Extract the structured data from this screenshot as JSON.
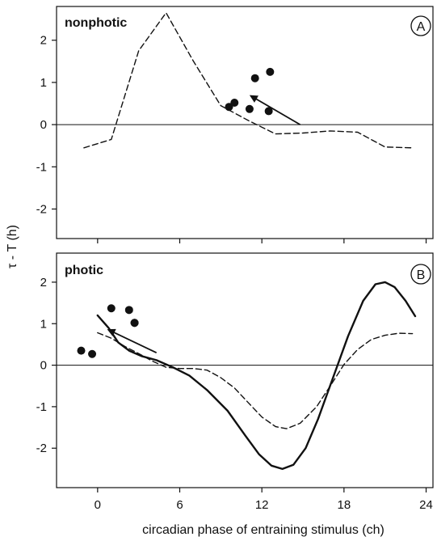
{
  "chart_data": {
    "type": "line",
    "ylabel": "τ - T (h)",
    "xlabel": "circadian phase of entraining stimulus (ch)",
    "xlim": [
      -3,
      24.5
    ],
    "x_ticks": [
      0,
      6,
      12,
      18,
      24
    ],
    "x_tick_labels": [
      "0",
      "6",
      "12",
      "18",
      "24"
    ],
    "y_ticks": [
      -2,
      -1,
      0,
      1,
      2
    ],
    "y_tick_labels": [
      "-2",
      "-1",
      "0",
      "1",
      "2"
    ],
    "panels": [
      {
        "id": "A",
        "title": "nonphotic",
        "badge": "A",
        "ylim": [
          -2.7,
          2.8
        ],
        "series": [
          {
            "style": "dashed",
            "x": [
              -1,
              1,
              3,
              5,
              7,
              9,
              11,
              13,
              15,
              17,
              19,
              21,
              23
            ],
            "y": [
              -0.55,
              -0.35,
              1.75,
              2.65,
              1.5,
              0.45,
              0.1,
              -0.22,
              -0.2,
              -0.15,
              -0.18,
              -0.53,
              -0.55
            ]
          }
        ],
        "points": {
          "x": [
            9.6,
            10.0,
            11.1,
            11.5,
            12.5,
            12.6
          ],
          "y": [
            0.42,
            0.52,
            0.37,
            1.1,
            0.32,
            1.25
          ]
        },
        "arrow": {
          "from": [
            14.8,
            0.0
          ],
          "to": [
            11.2,
            0.68
          ]
        }
      },
      {
        "id": "B",
        "title": "photic",
        "badge": "B",
        "ylim": [
          -2.95,
          2.7
        ],
        "series": [
          {
            "style": "solid",
            "x": [
              0,
              0.8,
              1.5,
              2.3,
              3.2,
              4.3,
              5.5,
              6.7,
              8,
              9.5,
              10.8,
              11.8,
              12.7,
              13.5,
              14.3,
              15.2,
              16.1,
              17.2,
              18.3,
              19.4,
              20.3,
              21.0,
              21.7,
              22.5,
              23.2
            ],
            "y": [
              1.2,
              0.9,
              0.55,
              0.35,
              0.22,
              0.12,
              -0.05,
              -0.25,
              -0.6,
              -1.1,
              -1.7,
              -2.15,
              -2.42,
              -2.5,
              -2.4,
              -2.0,
              -1.3,
              -0.3,
              0.7,
              1.55,
              1.95,
              2.0,
              1.88,
              1.55,
              1.18
            ]
          },
          {
            "style": "dashed",
            "x": [
              0,
              1,
              2,
              3,
              4,
              5,
              6,
              7,
              8,
              9,
              10,
              11,
              12,
              13,
              13.8,
              14.8,
              16,
              17,
              18,
              19,
              20,
              21,
              22,
              23
            ],
            "y": [
              0.78,
              0.65,
              0.45,
              0.28,
              0.1,
              -0.05,
              -0.08,
              -0.08,
              -0.12,
              -0.3,
              -0.55,
              -0.9,
              -1.25,
              -1.48,
              -1.53,
              -1.4,
              -1.0,
              -0.5,
              0.02,
              0.38,
              0.62,
              0.72,
              0.77,
              0.76
            ]
          }
        ],
        "points": {
          "x": [
            -1.2,
            -0.4,
            1.0,
            2.3,
            2.7,
            2.7
          ],
          "y": [
            0.35,
            0.27,
            1.37,
            1.33,
            1.02,
            1.02
          ]
        },
        "arrow": {
          "from": [
            4.3,
            0.3
          ],
          "to": [
            0.8,
            0.85
          ]
        }
      }
    ]
  }
}
